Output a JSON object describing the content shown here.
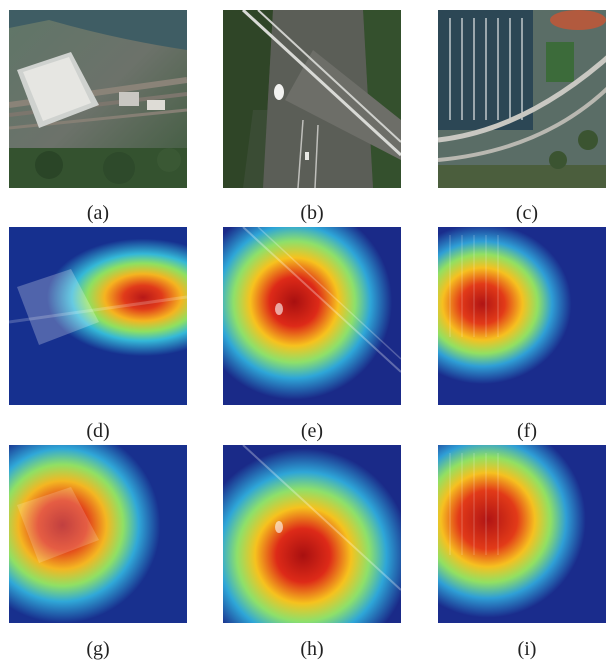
{
  "figure": {
    "captions": [
      "(a)",
      "(b)",
      "(c)",
      "(d)",
      "(e)",
      "(f)",
      "(g)",
      "(h)",
      "(i)"
    ]
  }
}
